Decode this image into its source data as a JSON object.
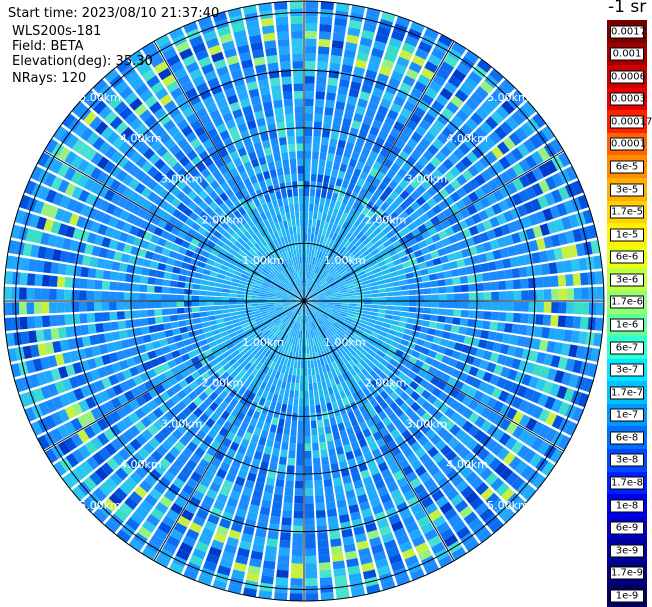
{
  "info": {
    "start_time": "Start time: 2023/08/10 21:37:40",
    "instrument": "WLS200s-181",
    "field": "Field: BETA",
    "elevation": "Elevation(deg): 35.30",
    "nrays": "NRays: 120"
  },
  "colorbar": {
    "title": "-1 sr",
    "labels": [
      "0.0017",
      "0.001",
      "0.0006",
      "0.0003",
      "0.00017",
      "0.0001",
      "6e-5",
      "3e-5",
      "1.7e-5",
      "1e-5",
      "6e-6",
      "3e-6",
      "1.7e-6",
      "1e-6",
      "6e-7",
      "3e-7",
      "1.7e-7",
      "1e-7",
      "6e-8",
      "3e-8",
      "1.7e-8",
      "1e-8",
      "6e-9",
      "3e-9",
      "1.7e-9",
      "1e-9"
    ],
    "colors": [
      "#7a0000",
      "#a00000",
      "#c80000",
      "#e80000",
      "#ff2000",
      "#ff6400",
      "#ff8c00",
      "#ffb000",
      "#ffd200",
      "#fff000",
      "#e8ff10",
      "#c0ff40",
      "#90ff70",
      "#60ffa0",
      "#30ffd0",
      "#00e8ff",
      "#00c0ff",
      "#0098ff",
      "#0070ff",
      "#0048ff",
      "#0020ff",
      "#0000f0",
      "#0000c8",
      "#0000a0",
      "#000080",
      "#000060"
    ]
  },
  "chart_data": {
    "type": "heatmap",
    "subtype": "ppi-polar-scan",
    "field": "BETA",
    "units": "-1 sr",
    "scale": "log",
    "range_unit": "km",
    "max_range_km": 5.2,
    "range_ring_labels": [
      "1.00km",
      "2.00km",
      "3.00km",
      "4.00km",
      "5.00km"
    ],
    "nrays": 120,
    "spoke_angles_deg": [
      0,
      30,
      60,
      90,
      120,
      150,
      180,
      210,
      240,
      270,
      300,
      330
    ],
    "dominant_value_range": [
      "1e-7",
      "6e-8"
    ],
    "feature": "enhanced backscatter arc near 4.5-5.0 km (1.7e-6 to 1e-5)"
  }
}
